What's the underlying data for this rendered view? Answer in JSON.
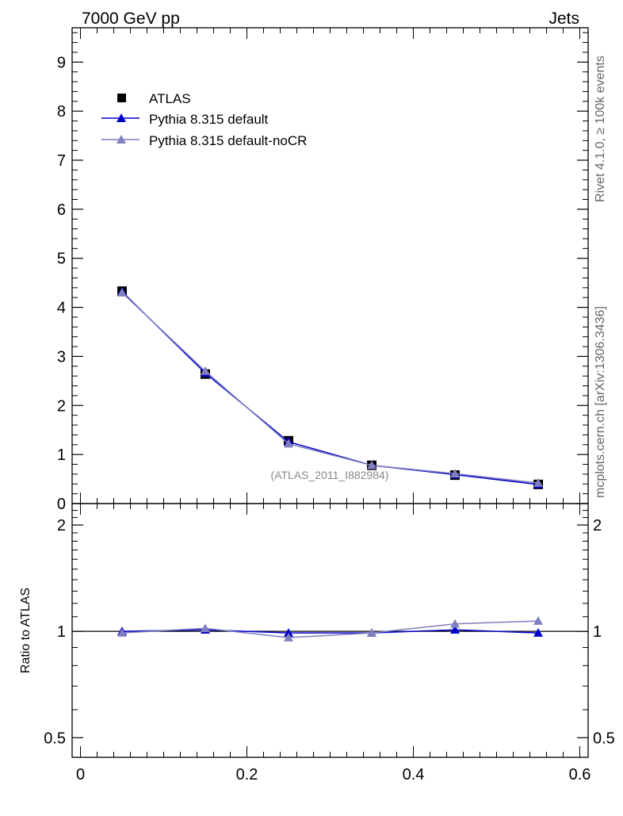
{
  "header": {
    "left_title": "7000 GeV pp",
    "right_title": "Jets"
  },
  "side_labels": {
    "rivet": "Rivet 4.1.0, ≥ 100k events",
    "mcplots": "mcplots.cern.ch [arXiv:1306.3436]"
  },
  "chart_data": [
    {
      "panel": "main",
      "type": "line",
      "title": "7000 GeV pp",
      "subtitle": "Jets",
      "analysis_label": "(ATLAS_2011_I882984)",
      "x": [
        0.05,
        0.15,
        0.25,
        0.35,
        0.45,
        0.55
      ],
      "xlim": [
        -0.01,
        0.61
      ],
      "ylim": [
        0,
        9.7
      ],
      "y_ticks": [
        0,
        1,
        2,
        3,
        4,
        5,
        6,
        7,
        8,
        9
      ],
      "y_tick_labels": [
        "0",
        "1",
        "2",
        "3",
        "4",
        "5",
        "6",
        "7",
        "8",
        "9"
      ],
      "legend_position": "top-left",
      "series": [
        {
          "name": "ATLAS",
          "marker": "square",
          "color": "#000000",
          "values": [
            4.33,
            2.64,
            1.28,
            0.78,
            0.58,
            0.39
          ]
        },
        {
          "name": "Pythia 8.315 default",
          "marker": "triangle",
          "color": "#0000cc",
          "values": [
            4.32,
            2.66,
            1.26,
            0.78,
            0.59,
            0.39
          ]
        },
        {
          "name": "Pythia 8.315 default-noCR",
          "marker": "triangle",
          "color": "#7f7fbf",
          "values": [
            4.3,
            2.7,
            1.22,
            0.78,
            0.61,
            0.42
          ]
        }
      ]
    },
    {
      "panel": "ratio",
      "type": "line",
      "ylabel": "Ratio to ATLAS",
      "x": [
        0.05,
        0.15,
        0.25,
        0.35,
        0.45,
        0.55
      ],
      "xlim": [
        -0.01,
        0.61
      ],
      "ylim": [
        0.44,
        2.3
      ],
      "y_ticks": [
        0.5,
        1,
        2
      ],
      "y_tick_labels": [
        "0.5",
        "1",
        "2"
      ],
      "x_ticks": [
        0,
        0.2,
        0.4,
        0.6
      ],
      "x_tick_labels": [
        "0",
        "0.2",
        "0.4",
        "0.6"
      ],
      "reference_line": 1,
      "series": [
        {
          "name": "Pythia 8.315 default",
          "color": "#0000cc",
          "values": [
            1.0,
            1.01,
            0.99,
            0.99,
            1.01,
            0.99
          ],
          "errors": [
            0.01,
            0.01,
            0.02,
            0.02,
            0.02,
            0.02
          ]
        },
        {
          "name": "Pythia 8.315 default-noCR",
          "color": "#7f7fbf",
          "values": [
            0.99,
            1.02,
            0.96,
            0.99,
            1.05,
            1.07
          ],
          "errors": [
            0.01,
            0.01,
            0.01,
            0.02,
            0.02,
            0.02
          ]
        }
      ]
    }
  ]
}
